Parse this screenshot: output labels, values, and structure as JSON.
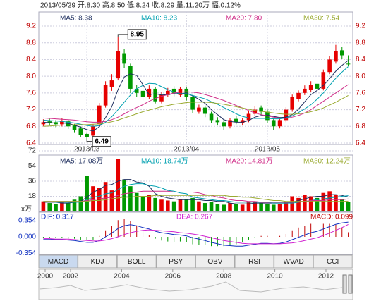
{
  "header": "2013/05/29 开:8.30 高:8.50 低:8.24 收:8.29 量:11.20万 幅:0.12%",
  "chart_data": [
    {
      "type": "candlestick",
      "categories": [
        null,
        null,
        null,
        null,
        null,
        null,
        null,
        "2013/03",
        null,
        null,
        null,
        null,
        null,
        null,
        null,
        null,
        null,
        null,
        null,
        null,
        null,
        null,
        null,
        "2013/04",
        null,
        null,
        null,
        null,
        null,
        null,
        null,
        null,
        null,
        null,
        null,
        null,
        "2013/05",
        null,
        null,
        null,
        null,
        null,
        null,
        null,
        null,
        null,
        null,
        null,
        null,
        null
      ],
      "open": [
        6.85,
        6.92,
        6.9,
        6.85,
        6.92,
        6.82,
        6.75,
        6.62,
        6.58,
        6.85,
        7.3,
        7.75,
        7.95,
        8.55,
        8.25,
        7.7,
        7.65,
        7.5,
        7.7,
        7.4,
        7.55,
        7.7,
        7.55,
        7.7,
        7.5,
        7.15,
        7.25,
        7.1,
        6.95,
        6.9,
        6.8,
        6.98,
        6.88,
        6.95,
        7.1,
        7.25,
        7.15,
        6.95,
        6.8,
        6.95,
        7.2,
        7.45,
        7.6,
        7.68,
        7.82,
        7.7,
        8.1,
        8.35,
        8.62,
        8.3
      ],
      "high": [
        6.97,
        6.98,
        6.95,
        7.0,
        6.96,
        6.86,
        6.8,
        6.66,
        6.85,
        7.36,
        7.88,
        8.05,
        8.95,
        8.65,
        8.3,
        7.8,
        7.72,
        7.78,
        7.75,
        7.62,
        7.72,
        7.76,
        7.75,
        7.74,
        7.55,
        7.32,
        7.3,
        7.15,
        7.02,
        6.95,
        7.0,
        7.04,
        7.0,
        7.18,
        7.28,
        7.3,
        7.2,
        7.0,
        7.02,
        7.26,
        7.56,
        7.66,
        7.78,
        7.88,
        7.9,
        8.16,
        8.48,
        8.75,
        8.7,
        8.5
      ],
      "low": [
        6.8,
        6.82,
        6.78,
        6.8,
        6.74,
        6.66,
        6.54,
        6.49,
        6.55,
        6.82,
        7.25,
        7.65,
        7.9,
        8.2,
        7.6,
        7.5,
        7.42,
        7.45,
        7.35,
        7.35,
        7.5,
        7.52,
        7.5,
        7.42,
        7.12,
        7.1,
        7.02,
        6.88,
        6.82,
        6.72,
        6.75,
        6.85,
        6.82,
        6.9,
        7.05,
        7.08,
        6.88,
        6.72,
        6.75,
        6.9,
        7.15,
        7.4,
        7.55,
        7.62,
        7.64,
        7.66,
        8.05,
        8.3,
        8.42,
        8.24
      ],
      "close": [
        6.9,
        6.88,
        6.85,
        6.92,
        6.8,
        6.72,
        6.6,
        6.55,
        6.8,
        7.3,
        7.8,
        7.9,
        8.6,
        8.3,
        7.7,
        7.6,
        7.5,
        7.7,
        7.4,
        7.55,
        7.65,
        7.6,
        7.7,
        7.5,
        7.2,
        7.25,
        7.1,
        6.95,
        6.9,
        6.8,
        6.95,
        6.9,
        6.95,
        7.1,
        7.2,
        7.15,
        6.95,
        6.8,
        6.95,
        7.2,
        7.5,
        7.6,
        7.7,
        7.8,
        7.7,
        8.1,
        8.4,
        8.6,
        8.5,
        8.29
      ],
      "up_color": "#e60000",
      "down_color": "#009900",
      "series": [
        {
          "name": "MA5: 8.38",
          "color": "#1f2f5f",
          "values": [
            6.9,
            6.89,
            6.88,
            6.88,
            6.87,
            6.83,
            6.78,
            6.72,
            6.69,
            6.79,
            7.01,
            7.27,
            7.68,
            7.98,
            8.06,
            8.02,
            7.8,
            7.56,
            7.58,
            7.55,
            7.56,
            7.58,
            7.58,
            7.6,
            7.53,
            7.45,
            7.35,
            7.2,
            7.08,
            6.96,
            6.92,
            6.9,
            6.9,
            6.94,
            7.02,
            7.06,
            7.07,
            7.04,
            7.01,
            7.02,
            7.08,
            7.21,
            7.39,
            7.56,
            7.66,
            7.78,
            7.94,
            8.12,
            8.26,
            8.38
          ]
        },
        {
          "name": "MA10: 8.23",
          "color": "#00a0b0",
          "values": [
            6.95,
            6.94,
            6.93,
            6.92,
            6.9,
            6.88,
            6.85,
            6.82,
            6.8,
            6.82,
            6.9,
            7.03,
            7.2,
            7.38,
            7.55,
            7.7,
            7.78,
            7.83,
            7.82,
            7.75,
            7.68,
            7.62,
            7.58,
            7.58,
            7.54,
            7.5,
            7.46,
            7.39,
            7.33,
            7.25,
            7.18,
            7.1,
            7.04,
            7.0,
            6.99,
            6.99,
            6.99,
            6.98,
            6.98,
            7.0,
            7.05,
            7.13,
            7.22,
            7.32,
            7.45,
            7.6,
            7.78,
            7.95,
            8.1,
            8.23
          ]
        },
        {
          "name": "MA20: 7.80",
          "color": "#d0308a",
          "values": [
            7.0,
            6.99,
            6.98,
            6.97,
            6.96,
            6.95,
            6.93,
            6.91,
            6.9,
            6.9,
            6.92,
            6.96,
            7.02,
            7.1,
            7.18,
            7.25,
            7.32,
            7.4,
            7.47,
            7.52,
            7.56,
            7.6,
            7.62,
            7.63,
            7.62,
            7.6,
            7.56,
            7.52,
            7.47,
            7.42,
            7.36,
            7.3,
            7.24,
            7.18,
            7.12,
            7.08,
            7.05,
            7.02,
            7.0,
            6.99,
            7.02,
            7.06,
            7.12,
            7.2,
            7.3,
            7.4,
            7.5,
            7.6,
            7.7,
            7.8
          ]
        },
        {
          "name": "MA30: 7.54",
          "color": "#9aaa30",
          "values": [
            6.8,
            6.81,
            6.82,
            6.83,
            6.83,
            6.84,
            6.84,
            6.84,
            6.85,
            6.86,
            6.88,
            6.91,
            6.95,
            7.0,
            7.05,
            7.1,
            7.15,
            7.19,
            7.23,
            7.27,
            7.3,
            7.33,
            7.35,
            7.37,
            7.38,
            7.38,
            7.38,
            7.37,
            7.35,
            7.33,
            7.3,
            7.27,
            7.24,
            7.21,
            7.18,
            7.16,
            7.14,
            7.12,
            7.1,
            7.09,
            7.09,
            7.1,
            7.12,
            7.15,
            7.19,
            7.24,
            7.31,
            7.38,
            7.46,
            7.54
          ]
        }
      ],
      "ylim": [
        6.4,
        9.2
      ],
      "yticks": [
        6.4,
        6.8,
        7.2,
        7.6,
        {
          "value": 8,
          "label": "8.0"
        },
        8.4,
        8.8,
        9.2
      ],
      "grid": true
    },
    {
      "type": "bar",
      "ylabel": "x万",
      "values": [
        12,
        10,
        9,
        11,
        10,
        14,
        18,
        42,
        30,
        28,
        35,
        25,
        62,
        38,
        30,
        22,
        18,
        20,
        16,
        14,
        13,
        12,
        15,
        14,
        16,
        12,
        10,
        11,
        9,
        8,
        10,
        9,
        8,
        11,
        12,
        10,
        9,
        8,
        9,
        12,
        18,
        16,
        20,
        18,
        16,
        22,
        24,
        20,
        14,
        11.2
      ],
      "series": [
        {
          "name": "MA5: 17.08万",
          "color": "#1f2f5f",
          "values": [
            11,
            11,
            11,
            10,
            10,
            11,
            12,
            17,
            23,
            26,
            31,
            32,
            36,
            38,
            38,
            35,
            34,
            30,
            21,
            18,
            16,
            15,
            14,
            14,
            14,
            14,
            13,
            13,
            12,
            12,
            10,
            9,
            9,
            9,
            10,
            10,
            10,
            10,
            10,
            10,
            11,
            13,
            15,
            17,
            18,
            18,
            20,
            20,
            19,
            17.08
          ]
        },
        {
          "name": "MA10: 18.74万",
          "color": "#00a0b0",
          "values": [
            12,
            12,
            11,
            11,
            11,
            11,
            11,
            14,
            17,
            18,
            21,
            22,
            26,
            30,
            32,
            33,
            33,
            31,
            30,
            28,
            25,
            24,
            22,
            21,
            17,
            16,
            15,
            14,
            13,
            13,
            12,
            11,
            11,
            11,
            11,
            11,
            11,
            10,
            10,
            10,
            10,
            11,
            12,
            13,
            14,
            15,
            16,
            17,
            18,
            18.74
          ]
        },
        {
          "name": "MA20: 14.81万",
          "color": "#d0308a",
          "values": [
            12,
            12,
            12,
            12,
            12,
            12,
            12,
            13,
            14,
            15,
            16,
            17,
            19,
            21,
            22,
            23,
            24,
            24,
            24,
            24,
            24,
            23,
            23,
            23,
            23,
            22,
            20,
            19,
            17,
            16,
            14,
            13,
            13,
            12,
            12,
            11,
            11,
            11,
            11,
            11,
            11,
            12,
            12,
            13,
            13,
            13,
            14,
            14,
            14,
            14.81
          ]
        },
        {
          "name": "MA30: 12.24万",
          "color": "#9aaa30",
          "values": [
            12,
            12,
            12,
            12,
            12,
            12,
            12,
            12,
            13,
            13,
            14,
            15,
            16,
            17,
            17,
            18,
            18,
            18,
            19,
            19,
            19,
            19,
            19,
            19,
            19,
            19,
            19,
            19,
            19,
            19,
            18,
            18,
            17,
            17,
            16,
            15,
            14,
            13,
            13,
            12,
            12,
            12,
            12,
            12,
            12,
            12,
            12,
            12,
            12,
            12.24
          ]
        }
      ],
      "ylim": [
        0,
        72
      ],
      "yticks": [
        18,
        36,
        54,
        72
      ],
      "grid": true
    },
    {
      "type": "macd",
      "series": [
        {
          "name": "DIF: 0.317",
          "color": "#1030c0",
          "values": [
            -0.05,
            -0.05,
            -0.06,
            -0.06,
            -0.07,
            -0.08,
            -0.1,
            -0.12,
            -0.12,
            -0.08,
            0.0,
            0.08,
            0.18,
            0.24,
            0.26,
            0.24,
            0.2,
            0.17,
            0.12,
            0.09,
            0.07,
            0.05,
            0.04,
            0.02,
            -0.02,
            -0.05,
            -0.08,
            -0.12,
            -0.15,
            -0.18,
            -0.19,
            -0.2,
            -0.2,
            -0.18,
            -0.16,
            -0.14,
            -0.14,
            -0.15,
            -0.14,
            -0.11,
            -0.06,
            -0.01,
            0.04,
            0.09,
            0.12,
            0.17,
            0.22,
            0.27,
            0.3,
            0.317
          ]
        },
        {
          "name": "DEA: 0.267",
          "color": "#d020d0",
          "values": [
            -0.04,
            -0.04,
            -0.05,
            -0.05,
            -0.05,
            -0.06,
            -0.07,
            -0.08,
            -0.09,
            -0.09,
            -0.07,
            -0.04,
            0.0,
            0.05,
            0.09,
            0.12,
            0.14,
            0.15,
            0.14,
            0.13,
            0.12,
            0.11,
            0.09,
            0.08,
            0.06,
            0.04,
            0.01,
            -0.02,
            -0.05,
            -0.08,
            -0.1,
            -0.12,
            -0.14,
            -0.15,
            -0.15,
            -0.15,
            -0.15,
            -0.15,
            -0.15,
            -0.14,
            -0.13,
            -0.11,
            -0.08,
            -0.05,
            -0.02,
            0.03,
            0.08,
            0.14,
            0.2,
            0.267
          ]
        }
      ],
      "bars": {
        "name": "MACD: 0.099",
        "up_color": "#c00000",
        "down_color": "#009900",
        "values": [
          -0.02,
          -0.02,
          -0.02,
          -0.02,
          -0.04,
          -0.04,
          -0.06,
          -0.08,
          -0.06,
          0.02,
          0.14,
          0.24,
          0.36,
          0.38,
          0.34,
          0.24,
          0.12,
          0.04,
          -0.04,
          -0.08,
          -0.1,
          -0.12,
          -0.1,
          -0.12,
          -0.16,
          -0.18,
          -0.18,
          -0.2,
          -0.2,
          -0.2,
          -0.18,
          -0.16,
          -0.12,
          -0.06,
          -0.02,
          0.02,
          0.02,
          0.0,
          0.02,
          0.06,
          0.14,
          0.2,
          0.24,
          0.28,
          0.28,
          0.28,
          0.28,
          0.26,
          0.2,
          0.099
        ]
      },
      "ylim": [
        -0.5,
        0.5
      ],
      "yticks": [
        -0.354,
        {
          "value": 0,
          "label": "0.000"
        },
        0.354
      ]
    }
  ],
  "tabs": [
    "MACD",
    "KDJ",
    "BOLL",
    "PSY",
    "OBV",
    "RSI",
    "WVAD",
    "CCI"
  ],
  "active_tab": "MACD",
  "timeline": [
    2000,
    2002,
    2004,
    2006,
    2008,
    2010,
    2012
  ]
}
